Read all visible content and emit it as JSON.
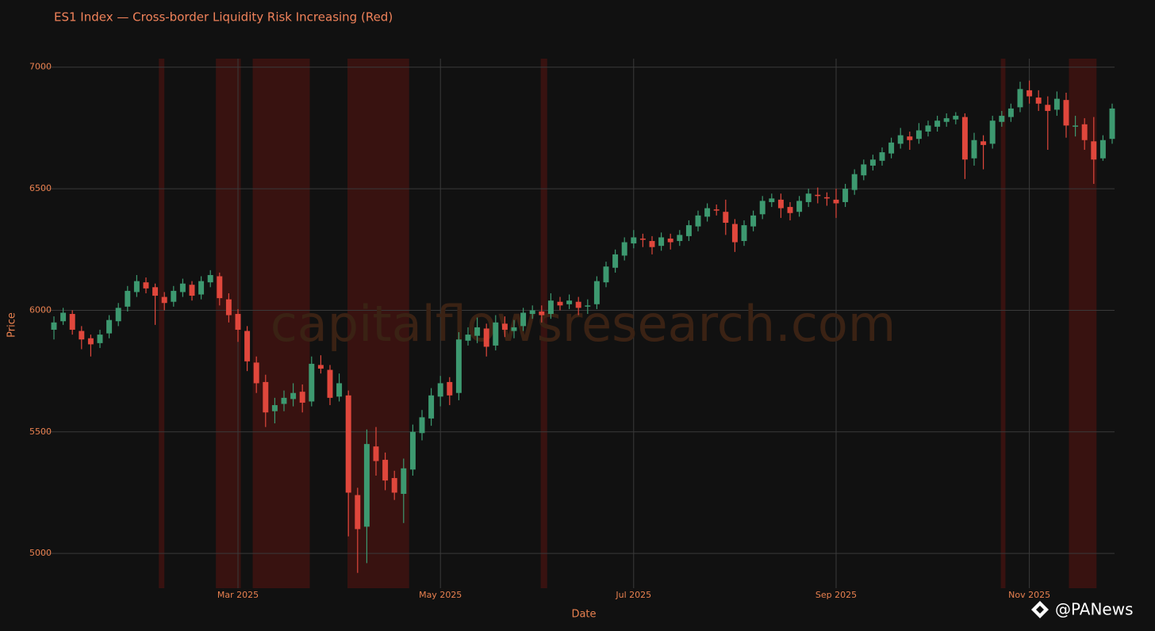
{
  "chart_data": {
    "type": "candlestick",
    "title": "ES1 Index — Cross-border Liquidity Risk Increasing (Red)",
    "x_label": "Date",
    "y_label": "Price",
    "watermark": "capitalflowsresearch.com",
    "source": "@PANews",
    "categories": [
      null,
      null,
      null,
      null,
      null,
      null,
      null,
      null,
      null,
      null,
      null,
      null,
      null,
      null,
      null,
      null,
      null,
      null,
      null,
      null,
      "Mar 2025",
      null,
      null,
      null,
      null,
      null,
      null,
      null,
      null,
      null,
      null,
      null,
      null,
      null,
      null,
      null,
      null,
      null,
      null,
      null,
      null,
      null,
      "May 2025",
      null,
      null,
      null,
      null,
      null,
      null,
      null,
      null,
      null,
      null,
      null,
      null,
      null,
      null,
      null,
      null,
      null,
      null,
      null,
      null,
      "Jul 2025",
      null,
      null,
      null,
      null,
      null,
      null,
      null,
      null,
      null,
      null,
      null,
      null,
      null,
      null,
      null,
      null,
      null,
      null,
      null,
      null,
      null,
      "Sep 2025",
      null,
      null,
      null,
      null,
      null,
      null,
      null,
      null,
      null,
      null,
      null,
      null,
      null,
      null,
      null,
      null,
      null,
      null,
      null,
      null,
      "Nov 2025",
      null,
      null,
      null,
      null,
      null,
      null,
      null,
      null,
      null
    ],
    "open": [
      5920,
      5955,
      5985,
      5915,
      5885,
      5865,
      5905,
      5955,
      6015,
      6075,
      6115,
      6095,
      6055,
      6035,
      6075,
      6105,
      6065,
      6115,
      6140,
      6045,
      5985,
      5915,
      5785,
      5705,
      5585,
      5615,
      5635,
      5665,
      5625,
      5775,
      5755,
      5645,
      5650,
      5240,
      5110,
      5440,
      5385,
      5310,
      5245,
      5345,
      5495,
      5555,
      5645,
      5705,
      5660,
      5875,
      5895,
      5925,
      5855,
      5945,
      5915,
      5935,
      5985,
      5995,
      5985,
      6035,
      6025,
      6035,
      6015,
      6025,
      6115,
      6175,
      6225,
      6275,
      6295,
      6285,
      6265,
      6295,
      6285,
      6305,
      6345,
      6385,
      6415,
      6405,
      6355,
      6285,
      6345,
      6395,
      6445,
      6455,
      6425,
      6405,
      6445,
      6475,
      6465,
      6455,
      6445,
      6495,
      6555,
      6595,
      6615,
      6645,
      6685,
      6715,
      6705,
      6735,
      6755,
      6775,
      6785,
      6795,
      6625,
      6695,
      6685,
      6775,
      6795,
      6835,
      6905,
      6875,
      6845,
      6825,
      6865,
      6755,
      6765,
      6695,
      6625,
      6705
    ],
    "high": [
      5975,
      6010,
      6000,
      5935,
      5900,
      5920,
      5980,
      6030,
      6100,
      6145,
      6135,
      6110,
      6075,
      6100,
      6130,
      6120,
      6140,
      6165,
      6155,
      6070,
      6005,
      5935,
      5810,
      5735,
      5640,
      5670,
      5700,
      5695,
      5810,
      5815,
      5775,
      5740,
      5670,
      5270,
      5510,
      5520,
      5415,
      5340,
      5390,
      5530,
      5590,
      5680,
      5730,
      5725,
      5910,
      5930,
      5970,
      5945,
      5980,
      5975,
      5960,
      6010,
      6020,
      6020,
      6070,
      6055,
      6065,
      6055,
      6045,
      6140,
      6200,
      6250,
      6300,
      6330,
      6315,
      6305,
      6320,
      6315,
      6330,
      6370,
      6410,
      6440,
      6435,
      6455,
      6375,
      6370,
      6410,
      6470,
      6480,
      6480,
      6445,
      6470,
      6500,
      6505,
      6485,
      6500,
      6520,
      6580,
      6620,
      6640,
      6670,
      6710,
      6750,
      6735,
      6770,
      6780,
      6800,
      6810,
      6815,
      6810,
      6730,
      6720,
      6800,
      6820,
      6850,
      6940,
      6945,
      6905,
      6880,
      6900,
      6895,
      6800,
      6790,
      6795,
      6720,
      6850
    ],
    "low": [
      5880,
      5940,
      5900,
      5840,
      5810,
      5845,
      5885,
      5935,
      5995,
      6055,
      6070,
      5940,
      6000,
      6015,
      6055,
      6040,
      6045,
      6095,
      6020,
      5950,
      5870,
      5750,
      5660,
      5520,
      5535,
      5585,
      5605,
      5580,
      5605,
      5740,
      5610,
      5625,
      5070,
      4920,
      4960,
      5320,
      5260,
      5220,
      5125,
      5320,
      5465,
      5525,
      5605,
      5610,
      5630,
      5855,
      5865,
      5810,
      5835,
      5890,
      5885,
      5915,
      5965,
      5950,
      5965,
      6000,
      6005,
      5980,
      5985,
      6005,
      6095,
      6155,
      6205,
      6255,
      6260,
      6230,
      6245,
      6250,
      6265,
      6285,
      6325,
      6365,
      6390,
      6310,
      6240,
      6265,
      6325,
      6375,
      6425,
      6380,
      6370,
      6385,
      6425,
      6440,
      6430,
      6380,
      6425,
      6475,
      6535,
      6575,
      6595,
      6625,
      6665,
      6660,
      6685,
      6715,
      6735,
      6755,
      6765,
      6540,
      6595,
      6580,
      6665,
      6755,
      6775,
      6815,
      6850,
      6820,
      6660,
      6800,
      6710,
      6715,
      6660,
      6520,
      6615,
      6685
    ],
    "close": [
      5950,
      5990,
      5920,
      5880,
      5860,
      5900,
      5960,
      6010,
      6080,
      6120,
      6090,
      6060,
      6030,
      6080,
      6110,
      6060,
      6120,
      6145,
      6050,
      5980,
      5920,
      5790,
      5700,
      5580,
      5610,
      5640,
      5660,
      5620,
      5780,
      5760,
      5640,
      5700,
      5250,
      5100,
      5450,
      5380,
      5300,
      5250,
      5350,
      5500,
      5560,
      5650,
      5700,
      5650,
      5880,
      5900,
      5930,
      5850,
      5950,
      5920,
      5930,
      5990,
      6000,
      5980,
      6040,
      6020,
      6040,
      6010,
      6020,
      6120,
      6180,
      6230,
      6280,
      6300,
      6290,
      6260,
      6300,
      6280,
      6310,
      6350,
      6390,
      6420,
      6410,
      6360,
      6280,
      6350,
      6390,
      6450,
      6460,
      6420,
      6400,
      6450,
      6480,
      6470,
      6460,
      6440,
      6500,
      6560,
      6600,
      6620,
      6650,
      6690,
      6720,
      6700,
      6740,
      6760,
      6780,
      6790,
      6800,
      6620,
      6700,
      6680,
      6780,
      6800,
      6830,
      6910,
      6880,
      6850,
      6820,
      6870,
      6760,
      6760,
      6700,
      6620,
      6700,
      6830
    ],
    "risk_periods": [
      [
        11.4,
        12.0
      ],
      [
        17.6,
        20.3
      ],
      [
        21.6,
        27.8
      ],
      [
        31.9,
        38.6
      ],
      [
        52.9,
        53.6
      ],
      [
        102.9,
        103.4
      ],
      [
        110.3,
        113.3
      ]
    ],
    "increasing_color": "#3d9970",
    "decreasing_color": "#e0473c",
    "risk_color": "#5a1410",
    "ylim": [
      4857,
      7035
    ],
    "yticks": [
      5000,
      5500,
      6000,
      6500,
      7000
    ],
    "grid": true
  }
}
